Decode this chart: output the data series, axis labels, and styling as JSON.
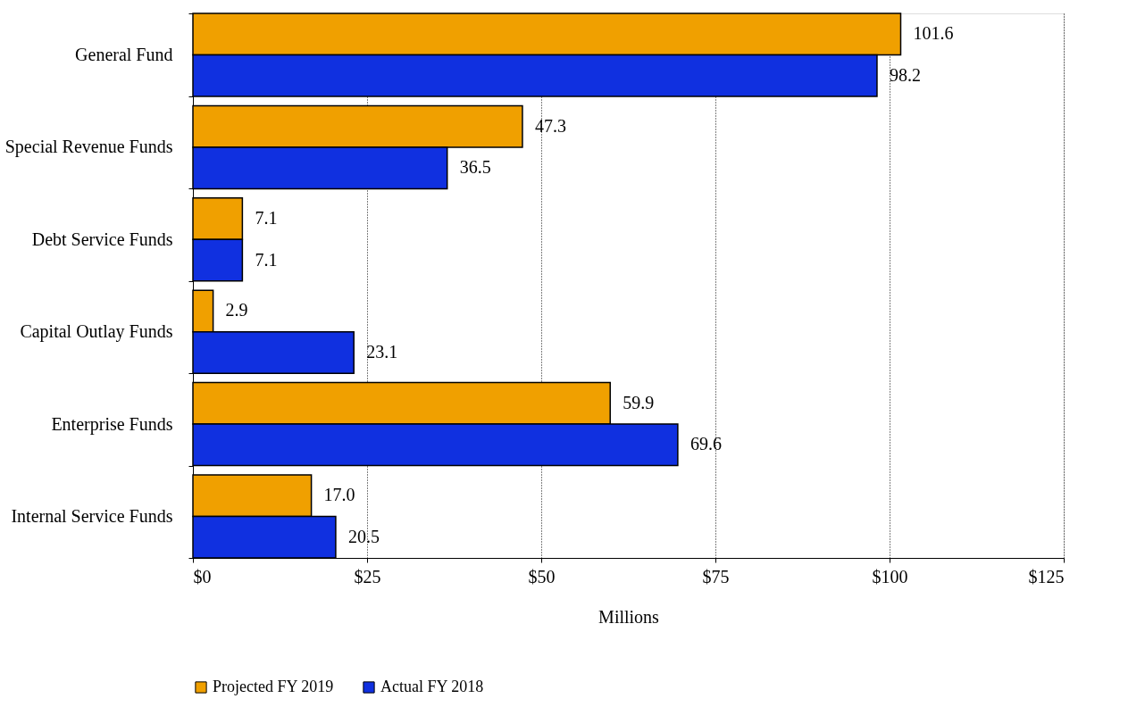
{
  "chart_data": {
    "type": "bar",
    "orientation": "horizontal",
    "xlabel": "Millions",
    "categories": [
      "General Fund",
      "Special Revenue Funds",
      "Debt Service Funds",
      "Capital Outlay Funds",
      "Enterprise Funds",
      "Internal Service Funds"
    ],
    "series": [
      {
        "name": "Projected FY 2019",
        "color": "#f0a000",
        "values": [
          101.6,
          47.3,
          7.1,
          2.9,
          59.9,
          17.0
        ],
        "value_labels": [
          "101.6",
          "47.3",
          "7.1",
          "2.9",
          "59.9",
          "17.0"
        ]
      },
      {
        "name": "Actual  FY 2018",
        "color": "#1030e0",
        "values": [
          98.2,
          36.5,
          7.1,
          23.1,
          69.6,
          20.5
        ],
        "value_labels": [
          "98.2",
          "36.5",
          "7.1",
          "23.1",
          "69.6",
          "20.5"
        ]
      }
    ],
    "xlim": [
      0,
      125
    ],
    "xticks": [
      {
        "value": 0,
        "label": "$0"
      },
      {
        "value": 25,
        "label": "$25"
      },
      {
        "value": 50,
        "label": "$50"
      },
      {
        "value": 75,
        "label": "$75"
      },
      {
        "value": 100,
        "label": "$100"
      },
      {
        "value": 125,
        "label": "$125"
      }
    ],
    "grid": "x",
    "legend": "bottom"
  }
}
